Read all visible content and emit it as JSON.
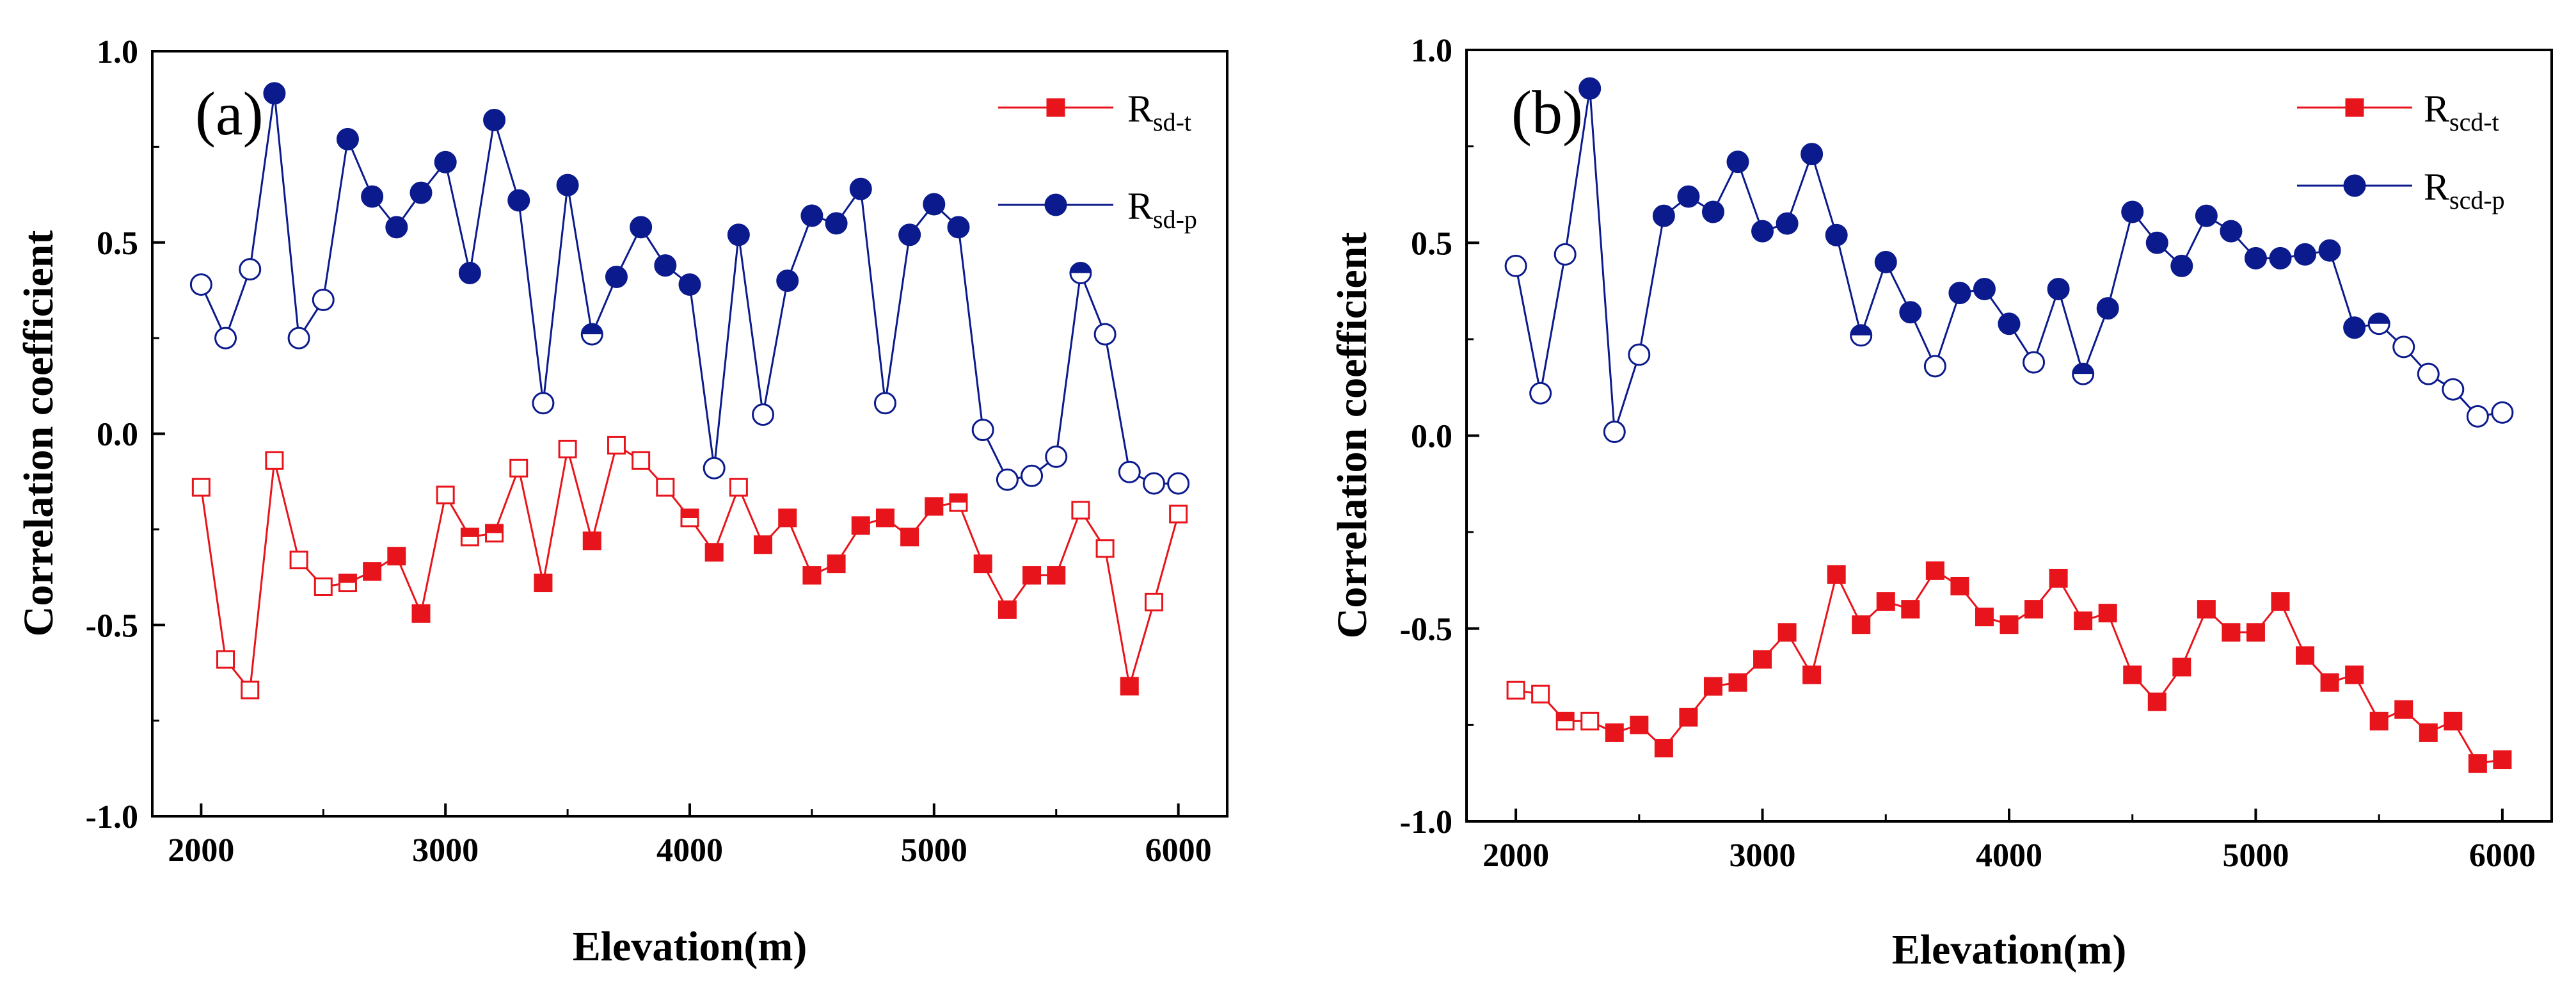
{
  "chart_data": [
    {
      "type": "line",
      "panel_label": "(a)",
      "xlabel": "Elevation(m)",
      "ylabel": "Correlation coefficient",
      "xlim": [
        1800,
        6200
      ],
      "ylim": [
        -1.0,
        1.0
      ],
      "x_ticks": [
        "2000",
        "3000",
        "4000",
        "5000",
        "6000"
      ],
      "y_ticks": [
        "-1.0",
        "-0.5",
        "0.0",
        "0.5",
        "1.0"
      ],
      "legend_position": "top-right",
      "x": [
        2000,
        2100,
        2200,
        2300,
        2400,
        2500,
        2600,
        2700,
        2800,
        2900,
        3000,
        3100,
        3200,
        3300,
        3400,
        3500,
        3600,
        3700,
        3800,
        3900,
        4000,
        4100,
        4200,
        4300,
        4400,
        4500,
        4600,
        4700,
        4800,
        4900,
        5000,
        5100,
        5200,
        5300,
        5400,
        5500,
        5600,
        5700,
        5800,
        5900,
        6000
      ],
      "series": [
        {
          "name": "R",
          "subscript": "sd-t",
          "color": "#e8141c",
          "marker": "square",
          "values": [
            -0.14,
            -0.59,
            -0.67,
            -0.07,
            -0.33,
            -0.4,
            -0.39,
            -0.36,
            -0.32,
            -0.47,
            -0.16,
            -0.27,
            -0.26,
            -0.09,
            -0.39,
            -0.04,
            -0.28,
            -0.03,
            -0.07,
            -0.14,
            -0.22,
            -0.31,
            -0.14,
            -0.29,
            -0.22,
            -0.37,
            -0.34,
            -0.24,
            -0.22,
            -0.27,
            -0.19,
            -0.18,
            -0.34,
            -0.46,
            -0.37,
            -0.37,
            -0.2,
            -0.3,
            -0.66,
            -0.44,
            -0.21
          ],
          "marker_fill": [
            "open",
            "open",
            "open",
            "open",
            "open",
            "open",
            "half",
            "filled",
            "filled",
            "filled",
            "open",
            "half",
            "half",
            "open",
            "filled",
            "open",
            "filled",
            "open",
            "open",
            "open",
            "half",
            "filled",
            "open",
            "filled",
            "filled",
            "filled",
            "filled",
            "filled",
            "filled",
            "filled",
            "filled",
            "half",
            "filled",
            "filled",
            "filled",
            "filled",
            "open",
            "open",
            "filled",
            "open",
            "open"
          ]
        },
        {
          "name": "R",
          "subscript": "sd-p",
          "color": "#0b1a8c",
          "marker": "circle",
          "values": [
            0.39,
            0.25,
            0.43,
            0.89,
            0.25,
            0.35,
            0.77,
            0.62,
            0.54,
            0.63,
            0.71,
            0.42,
            0.82,
            0.61,
            0.08,
            0.65,
            0.26,
            0.41,
            0.54,
            0.44,
            0.39,
            -0.09,
            0.52,
            0.05,
            0.4,
            0.57,
            0.55,
            0.64,
            0.08,
            0.52,
            0.6,
            0.54,
            0.01,
            -0.12,
            -0.11,
            -0.06,
            0.42,
            0.26,
            -0.1,
            -0.13,
            -0.13
          ],
          "marker_fill": [
            "open",
            "open",
            "open",
            "filled",
            "open",
            "open",
            "filled",
            "filled",
            "filled",
            "filled",
            "filled",
            "filled",
            "filled",
            "filled",
            "open",
            "filled",
            "half",
            "filled",
            "filled",
            "filled",
            "filled",
            "open",
            "filled",
            "open",
            "filled",
            "filled",
            "filled",
            "filled",
            "open",
            "filled",
            "filled",
            "filled",
            "open",
            "open",
            "open",
            "open",
            "half",
            "open",
            "open",
            "open",
            "open"
          ]
        }
      ]
    },
    {
      "type": "line",
      "panel_label": "(b)",
      "xlabel": "Elevation(m)",
      "ylabel": "Correlation coefficient",
      "xlim": [
        1800,
        6200
      ],
      "ylim": [
        -1.0,
        1.0
      ],
      "x_ticks": [
        "2000",
        "3000",
        "4000",
        "5000",
        "6000"
      ],
      "y_ticks": [
        "-1.0",
        "-0.5",
        "0.0",
        "0.5",
        "1.0"
      ],
      "legend_position": "top-right",
      "x": [
        2000,
        2100,
        2200,
        2300,
        2400,
        2500,
        2600,
        2700,
        2800,
        2900,
        3000,
        3100,
        3200,
        3300,
        3400,
        3500,
        3600,
        3700,
        3800,
        3900,
        4000,
        4100,
        4200,
        4300,
        4400,
        4500,
        4600,
        4700,
        4800,
        4900,
        5000,
        5100,
        5200,
        5300,
        5400,
        5500,
        5600,
        5700,
        5800,
        5900,
        6000
      ],
      "series": [
        {
          "name": "R",
          "subscript": "scd-t",
          "color": "#e8141c",
          "marker": "square",
          "values": [
            -0.66,
            -0.67,
            -0.74,
            -0.74,
            -0.77,
            -0.75,
            -0.81,
            -0.73,
            -0.65,
            -0.64,
            -0.58,
            -0.51,
            -0.62,
            -0.36,
            -0.49,
            -0.43,
            -0.45,
            -0.35,
            -0.39,
            -0.47,
            -0.49,
            -0.45,
            -0.37,
            -0.48,
            -0.46,
            -0.62,
            -0.69,
            -0.6,
            -0.45,
            -0.51,
            -0.51,
            -0.43,
            -0.57,
            -0.64,
            -0.62,
            -0.74,
            -0.71,
            -0.77,
            -0.74,
            -0.85,
            -0.84
          ],
          "marker_fill": [
            "open",
            "open",
            "half",
            "open",
            "filled",
            "filled",
            "filled",
            "filled",
            "filled",
            "filled",
            "filled",
            "filled",
            "filled",
            "filled",
            "filled",
            "filled",
            "filled",
            "filled",
            "filled",
            "filled",
            "filled",
            "filled",
            "filled",
            "filled",
            "filled",
            "filled",
            "filled",
            "filled",
            "filled",
            "filled",
            "filled",
            "filled",
            "filled",
            "filled",
            "filled",
            "filled",
            "filled",
            "filled",
            "filled",
            "filled",
            "filled"
          ]
        },
        {
          "name": "R",
          "subscript": "scd-p",
          "color": "#0b1a8c",
          "marker": "circle",
          "values": [
            0.44,
            0.11,
            0.47,
            0.9,
            0.01,
            0.21,
            0.57,
            0.62,
            0.58,
            0.71,
            0.53,
            0.55,
            0.73,
            0.52,
            0.26,
            0.45,
            0.32,
            0.18,
            0.37,
            0.38,
            0.29,
            0.19,
            0.38,
            0.16,
            0.33,
            0.58,
            0.5,
            0.44,
            0.57,
            0.53,
            0.46,
            0.46,
            0.47,
            0.48,
            0.28,
            0.29,
            0.23,
            0.16,
            0.12,
            0.05,
            0.06
          ],
          "marker_fill": [
            "open",
            "open",
            "open",
            "filled",
            "open",
            "open",
            "filled",
            "filled",
            "filled",
            "filled",
            "filled",
            "filled",
            "filled",
            "filled",
            "half",
            "filled",
            "filled",
            "open",
            "filled",
            "filled",
            "filled",
            "open",
            "filled",
            "half",
            "filled",
            "filled",
            "filled",
            "filled",
            "filled",
            "filled",
            "filled",
            "filled",
            "filled",
            "filled",
            "filled",
            "half",
            "open",
            "open",
            "open",
            "open",
            "open"
          ]
        }
      ]
    }
  ]
}
